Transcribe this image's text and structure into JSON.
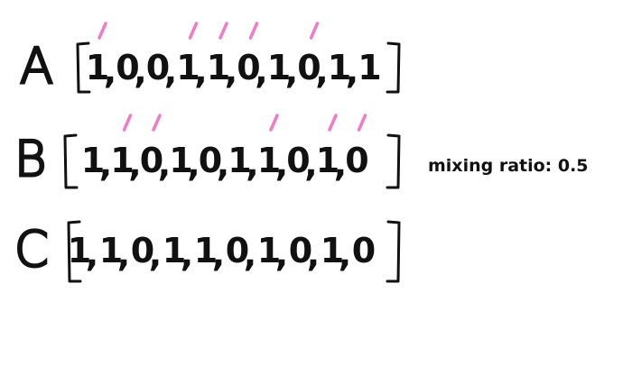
{
  "rows": [
    {
      "label": "A",
      "values": [
        "1",
        "0",
        "0",
        "1",
        "1",
        "0",
        "1",
        "0",
        "1",
        "1"
      ],
      "marked": [
        true,
        false,
        false,
        true,
        true,
        true,
        false,
        true,
        false,
        false
      ]
    },
    {
      "label": "B",
      "values": [
        "1",
        "1",
        "0",
        "1",
        "0",
        "1",
        "1",
        "0",
        "1",
        "0"
      ],
      "marked": [
        false,
        true,
        true,
        false,
        false,
        false,
        true,
        false,
        true,
        true
      ]
    },
    {
      "label": "C",
      "values": [
        "1",
        "1",
        "0",
        "1",
        "1",
        "0",
        "1",
        "0",
        "1",
        "0"
      ],
      "marked": [
        false,
        false,
        false,
        false,
        false,
        false,
        false,
        false,
        false,
        false
      ]
    }
  ],
  "mixing_ratio_label": "mixing ratio: 0.5",
  "colors": {
    "ink": "#111111",
    "marker": "#f07cc6"
  }
}
